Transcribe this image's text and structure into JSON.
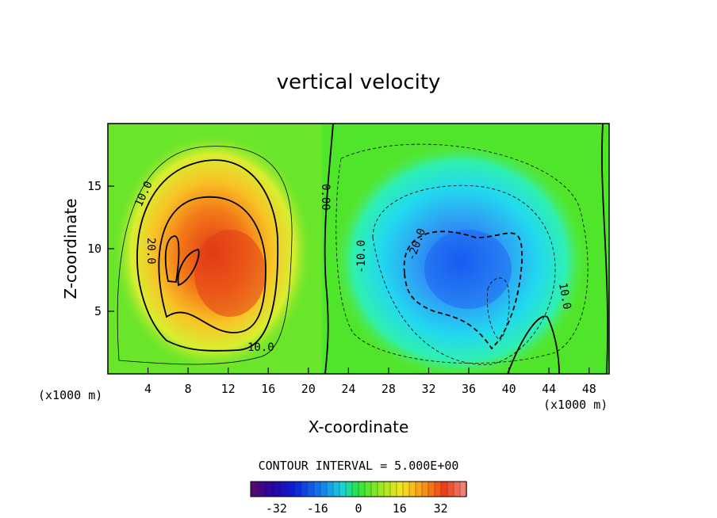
{
  "chart_data": {
    "type": "heatmap",
    "title": "vertical velocity",
    "xlabel": "X-coordinate",
    "ylabel": "Z-coordinate",
    "x_unit": "(x1000 m)",
    "y_unit": "(x1000 m)",
    "xlim": [
      0,
      50
    ],
    "ylim": [
      0,
      20
    ],
    "x_ticks": [
      "4",
      "8",
      "12",
      "16",
      "20",
      "24",
      "28",
      "32",
      "36",
      "40",
      "44",
      "48"
    ],
    "y_ticks": [
      "5",
      "10",
      "15"
    ],
    "contour_interval_text": "CONTOUR INTERVAL = 5.000E+00",
    "colorbar": {
      "min": -42,
      "max": 42,
      "tick_labels": [
        "-32",
        "-16",
        "0",
        "16",
        "32"
      ]
    },
    "contour_labels": [
      "10.0",
      "20.0",
      "0.00",
      "10.0",
      "-20.0",
      "-10.0",
      "10.0"
    ],
    "features": [
      {
        "name": "updraft",
        "x_center": 11,
        "z_center": 9,
        "peak": 35
      },
      {
        "name": "downdraft",
        "x_center": 34,
        "z_center": 8,
        "peak": -28
      }
    ],
    "colors": {
      "positive_peak": "#e8321a",
      "zero": "#33dd22",
      "negative_peak": "#1f5cf0"
    }
  }
}
